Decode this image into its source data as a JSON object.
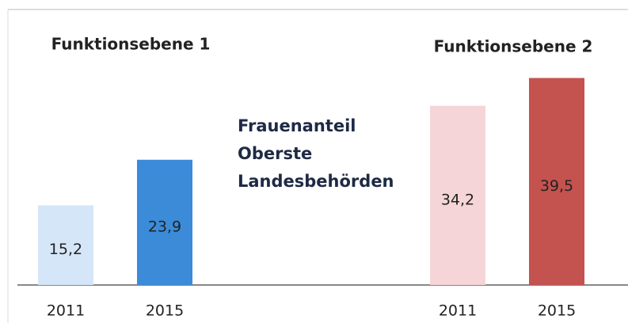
{
  "annotation": [
    "Frauenanteil",
    "Oberste",
    "Landesbehörden"
  ],
  "chart_data": [
    {
      "type": "bar",
      "title": "Funktionsebene 1",
      "categories": [
        "2011",
        "2015"
      ],
      "values": [
        15.2,
        23.9
      ],
      "value_labels": [
        "15,2",
        "23,9"
      ],
      "colors": [
        "#d4e6f7",
        "#3b8bd9"
      ]
    },
    {
      "type": "bar",
      "title": "Funktionsebene 2",
      "categories": [
        "2011",
        "2015"
      ],
      "values": [
        34.2,
        39.5
      ],
      "value_labels": [
        "34,2",
        "39,5"
      ],
      "colors": [
        "#f5d5d7",
        "#c4524f"
      ]
    }
  ]
}
